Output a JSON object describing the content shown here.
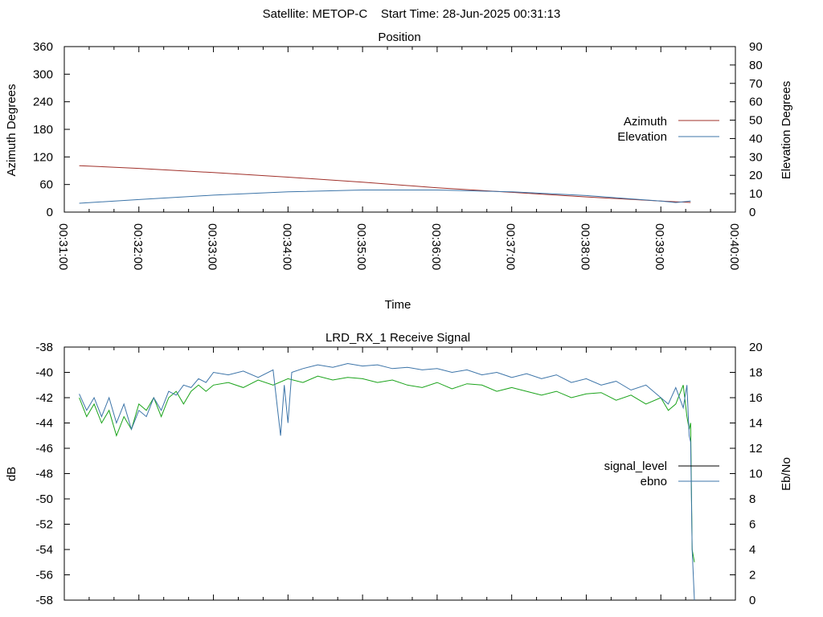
{
  "header": {
    "title": "Satellite: METOP-C    Start Time: 28-Jun-2025 00:31:13"
  },
  "chart_data": [
    {
      "type": "line",
      "title": "Position",
      "xlabel": "Time",
      "ylabel": "Azimuth Degrees",
      "y2label": "Elevation Degrees",
      "x_ticks": [
        "00:31:00",
        "00:32:00",
        "00:33:00",
        "00:34:00",
        "00:35:00",
        "00:36:00",
        "00:37:00",
        "00:38:00",
        "00:39:00",
        "00:40:00"
      ],
      "x_range_minutes": [
        0,
        9
      ],
      "ylim": [
        0,
        360
      ],
      "y_ticks": [
        "0",
        "60",
        "120",
        "180",
        "240",
        "300",
        "360"
      ],
      "y2lim": [
        0,
        90
      ],
      "y2_ticks": [
        "0",
        "10",
        "20",
        "30",
        "40",
        "50",
        "60",
        "70",
        "80",
        "90"
      ],
      "legend_position": "right",
      "series": [
        {
          "name": "Azimuth",
          "axis": "y",
          "color": "#a0302a",
          "x": [
            0.2,
            1.0,
            2.0,
            3.0,
            4.0,
            5.0,
            6.0,
            7.0,
            8.0,
            8.4
          ],
          "y": [
            101,
            95,
            86,
            76,
            65,
            53,
            43,
            33,
            24,
            21
          ]
        },
        {
          "name": "Elevation",
          "axis": "y2",
          "color": "#3c74a8",
          "x": [
            0.2,
            1.0,
            2.0,
            3.0,
            4.0,
            5.0,
            6.0,
            7.0,
            8.0,
            8.2,
            8.4
          ],
          "y": [
            4.8,
            6.8,
            9.2,
            11.0,
            12.0,
            12.0,
            11.0,
            9.0,
            6.0,
            5.2,
            6.0
          ]
        }
      ]
    },
    {
      "type": "line",
      "title": "LRD_RX_1 Receive Signal",
      "ylabel": "dB",
      "y2label": "Eb/No",
      "x_range_minutes": [
        0,
        9
      ],
      "ylim": [
        -58,
        -38
      ],
      "y_ticks": [
        "-58",
        "-56",
        "-54",
        "-52",
        "-50",
        "-48",
        "-46",
        "-44",
        "-42",
        "-40",
        "-38"
      ],
      "y2lim": [
        0,
        20
      ],
      "y2_ticks": [
        "0",
        "2",
        "4",
        "6",
        "8",
        "10",
        "12",
        "14",
        "16",
        "18",
        "20"
      ],
      "legend_position": "right",
      "series": [
        {
          "name": "signal_level",
          "axis": "y",
          "color": "#1aa31a",
          "x": [
            0.2,
            0.3,
            0.4,
            0.5,
            0.6,
            0.7,
            0.8,
            0.9,
            1.0,
            1.1,
            1.2,
            1.3,
            1.4,
            1.5,
            1.6,
            1.7,
            1.8,
            1.9,
            2.0,
            2.2,
            2.4,
            2.6,
            2.8,
            3.0,
            3.2,
            3.4,
            3.6,
            3.8,
            4.0,
            4.2,
            4.4,
            4.6,
            4.8,
            5.0,
            5.2,
            5.4,
            5.6,
            5.8,
            6.0,
            6.2,
            6.4,
            6.6,
            6.8,
            7.0,
            7.2,
            7.4,
            7.6,
            7.8,
            8.0,
            8.1,
            8.2,
            8.3,
            8.35,
            8.38,
            8.4,
            8.42,
            8.45
          ],
          "y": [
            -42.0,
            -43.5,
            -42.5,
            -44.0,
            -43.0,
            -45.0,
            -43.5,
            -44.5,
            -42.5,
            -43.0,
            -42.0,
            -43.5,
            -42.0,
            -41.5,
            -42.5,
            -41.5,
            -41.0,
            -41.5,
            -41.0,
            -40.8,
            -41.2,
            -40.6,
            -41.0,
            -40.5,
            -40.8,
            -40.3,
            -40.6,
            -40.4,
            -40.5,
            -40.8,
            -40.6,
            -41.0,
            -41.2,
            -40.8,
            -41.3,
            -40.9,
            -41.0,
            -41.5,
            -41.2,
            -41.5,
            -41.8,
            -41.5,
            -42.0,
            -41.7,
            -41.6,
            -42.2,
            -41.8,
            -42.5,
            -42.0,
            -43.0,
            -42.5,
            -41.0,
            -43.5,
            -44.5,
            -44.0,
            -54.0,
            -55.0
          ]
        },
        {
          "name": "ebno",
          "axis": "y2",
          "color": "#3c74a8",
          "x": [
            0.2,
            0.3,
            0.4,
            0.5,
            0.6,
            0.7,
            0.8,
            0.9,
            1.0,
            1.1,
            1.2,
            1.3,
            1.4,
            1.5,
            1.6,
            1.7,
            1.8,
            1.9,
            2.0,
            2.2,
            2.4,
            2.6,
            2.8,
            2.9,
            2.95,
            3.0,
            3.05,
            3.2,
            3.4,
            3.6,
            3.8,
            4.0,
            4.2,
            4.4,
            4.6,
            4.8,
            5.0,
            5.2,
            5.4,
            5.6,
            5.8,
            6.0,
            6.2,
            6.4,
            6.6,
            6.8,
            7.0,
            7.2,
            7.4,
            7.6,
            7.8,
            8.0,
            8.1,
            8.2,
            8.3,
            8.35,
            8.38,
            8.4,
            8.42,
            8.45
          ],
          "y": [
            16.3,
            15.0,
            16.0,
            14.5,
            16.0,
            14.0,
            15.5,
            13.5,
            15.0,
            14.5,
            16.0,
            15.0,
            16.5,
            16.2,
            17.0,
            16.8,
            17.5,
            17.2,
            18.0,
            17.8,
            18.1,
            17.6,
            18.2,
            13.0,
            17.0,
            14.0,
            18.0,
            18.3,
            18.6,
            18.4,
            18.7,
            18.5,
            18.6,
            18.3,
            18.4,
            18.2,
            18.3,
            18.0,
            18.2,
            17.8,
            18.0,
            17.6,
            17.9,
            17.5,
            17.8,
            17.2,
            17.5,
            17.0,
            17.3,
            16.6,
            17.0,
            16.0,
            15.5,
            16.8,
            15.2,
            17.0,
            13.0,
            12.5,
            4.0,
            0.0
          ]
        }
      ]
    }
  ]
}
